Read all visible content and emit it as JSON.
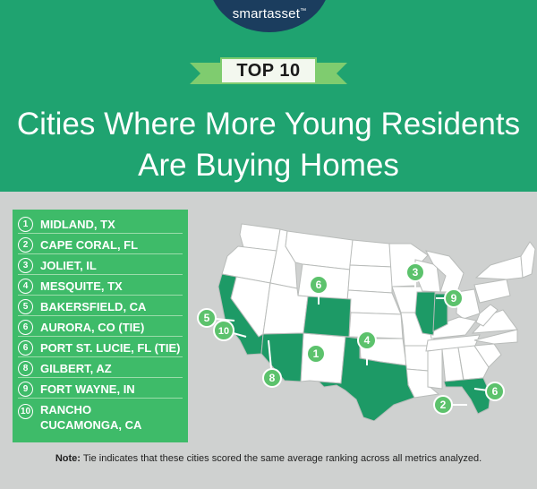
{
  "brand": {
    "logo": "smartasset",
    "tm": "™"
  },
  "banner": {
    "label": "TOP 10"
  },
  "title": {
    "line1": "Cities Where More Young Residents",
    "line2": "Are Buying Homes"
  },
  "colors": {
    "header_green": "#1fa370",
    "legend_green": "#3ebb69",
    "marker_green": "#5cc26c",
    "highlight_state": "#1d9a66",
    "state_fill": "#ffffff",
    "background": "#cfd1d0",
    "logo_navy": "#1b3d5e"
  },
  "rankings": [
    {
      "rank": "1",
      "city": "MIDLAND, TX"
    },
    {
      "rank": "2",
      "city": "CAPE CORAL, FL"
    },
    {
      "rank": "3",
      "city": "JOLIET, IL"
    },
    {
      "rank": "4",
      "city": "MESQUITE, TX"
    },
    {
      "rank": "5",
      "city": "BAKERSFIELD, CA"
    },
    {
      "rank": "6",
      "city": "AURORA, CO (TIE)"
    },
    {
      "rank": "6",
      "city": "PORT ST. LUCIE, FL (TIE)"
    },
    {
      "rank": "8",
      "city": "GILBERT, AZ"
    },
    {
      "rank": "9",
      "city": "FORT WAYNE, IN"
    },
    {
      "rank": "10",
      "city_line1": "RANCHO",
      "city_line2": "CUCAMONGA, CA"
    }
  ],
  "map": {
    "highlighted_states": [
      "California",
      "Arizona",
      "Colorado",
      "Texas",
      "Illinois",
      "Indiana",
      "Florida"
    ],
    "markers": [
      "1",
      "2",
      "3",
      "4",
      "5",
      "6",
      "6",
      "8",
      "9",
      "10"
    ]
  },
  "note": {
    "label": "Note:",
    "text": " Tie indicates that these cities scored the same average ranking across all metrics analyzed."
  }
}
